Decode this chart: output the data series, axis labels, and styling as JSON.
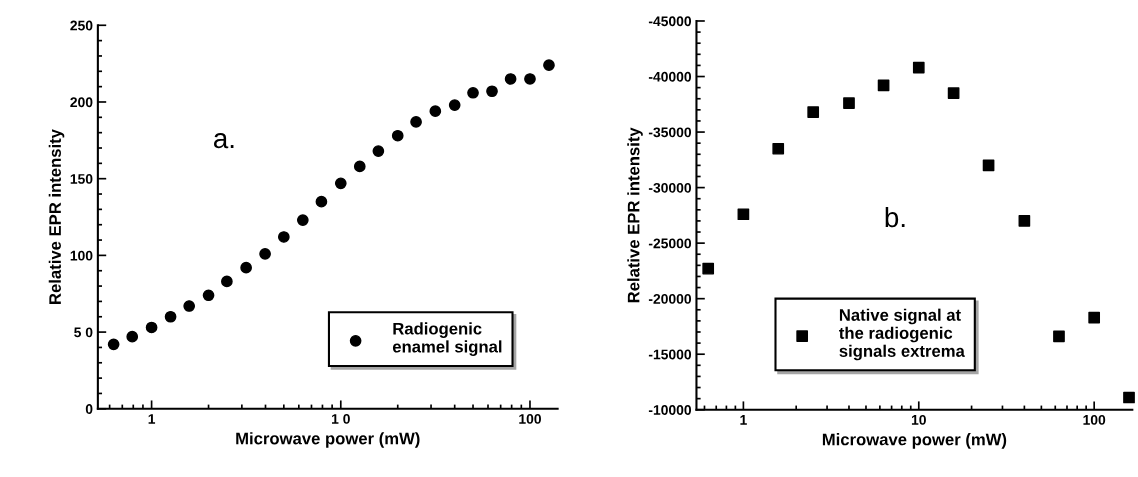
{
  "chart_data": [
    {
      "type": "scatter",
      "xlabel": "Microwave power (mW)",
      "ylabel": "Relative EPR intensity",
      "annotations": [
        "a."
      ],
      "log": "x",
      "xlim": [
        0.52,
        140
      ],
      "ylim": [
        0,
        250
      ],
      "xticks": [
        1,
        {
          "value": 10,
          "label": "1 0"
        },
        100
      ],
      "yticks": [
        0,
        {
          "value": 50,
          "label": "5 0"
        },
        100,
        150,
        200,
        250
      ],
      "legend": "bottom right",
      "marker": "circle",
      "x": [
        0.63,
        0.79,
        1,
        1.26,
        1.58,
        2,
        2.5,
        3.16,
        3.98,
        5,
        6.3,
        7.9,
        10,
        12.6,
        15.8,
        20,
        25,
        31.6,
        40,
        50,
        63,
        79,
        100,
        126
      ],
      "series": [
        {
          "name": "Radiogenic\nenamel signal",
          "color": "#000000",
          "values": [
            42,
            47,
            53,
            60,
            67,
            74,
            83,
            92,
            101,
            112,
            123,
            135,
            147,
            158,
            168,
            178,
            187,
            194,
            198,
            206,
            207,
            215,
            215,
            224
          ]
        }
      ]
    },
    {
      "type": "scatter",
      "xlabel": "Microwave power (mW)",
      "ylabel": "Relative EPR intensity",
      "annotations": [
        "b."
      ],
      "log": "x",
      "xlim": [
        0.54,
        165
      ],
      "ylim": [
        -10000,
        -45000
      ],
      "xticks": [
        1,
        10,
        100
      ],
      "yticks": [
        -10000,
        -15000,
        -20000,
        -25000,
        -30000,
        -35000,
        -40000,
        -45000
      ],
      "legend": "bottom",
      "marker": "square",
      "x": [
        0.63,
        1,
        1.58,
        2.5,
        4,
        6.3,
        10,
        15.8,
        25,
        40,
        63,
        100,
        158
      ],
      "series": [
        {
          "name": "Native signal at\nthe radiogenic\nsignals extrema",
          "color": "#000000",
          "values": [
            -22700,
            -27600,
            -33500,
            -36800,
            -37600,
            -39200,
            -40800,
            -38500,
            -32000,
            -27000,
            -16600,
            -18300,
            -11100
          ]
        }
      ]
    }
  ]
}
